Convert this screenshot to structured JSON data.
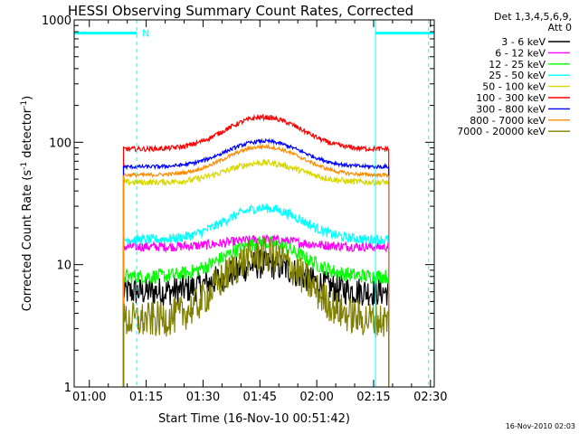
{
  "chart_data": {
    "type": "line",
    "title": "HESSI Observing Summary Count Rates, Corrected",
    "xlabel": "Start Time (16-Nov-10 00:51:42)",
    "ylabel": "Corrected Count Rate (s",
    "ylabel_sup1": "-1",
    "ylabel_mid": " detector",
    "ylabel_sup2": "-1",
    "ylabel_end": ")",
    "yscale": "log",
    "ylim": [
      1,
      1000
    ],
    "xlim_minutes": [
      56,
      151
    ],
    "x_ticks": [
      {
        "min": 60,
        "label": "01:00"
      },
      {
        "min": 75,
        "label": "01:15"
      },
      {
        "min": 90,
        "label": "01:30"
      },
      {
        "min": 105,
        "label": "01:45"
      },
      {
        "min": 120,
        "label": "02:00"
      },
      {
        "min": 135,
        "label": "02:15"
      },
      {
        "min": 150,
        "label": "02:30"
      }
    ],
    "y_ticks": [
      {
        "v": 1,
        "label": "1"
      },
      {
        "v": 10,
        "label": "10"
      },
      {
        "v": 100,
        "label": "100"
      },
      {
        "v": 1000,
        "label": "1000"
      }
    ],
    "legend_header": [
      "Det 1,3,4,5,6,9,",
      "Att 0"
    ],
    "data_start_min": 69,
    "data_end_min": 139,
    "peak_min": 106,
    "series": [
      {
        "name": "3 - 6 keV",
        "color": "#000000",
        "base": 6,
        "peak": 10,
        "noise": 0.12
      },
      {
        "name": "6 - 12 keV",
        "color": "#ff00ff",
        "base": 14,
        "peak": 16,
        "noise": 0.04
      },
      {
        "name": "12 - 25 keV",
        "color": "#00ff00",
        "base": 8,
        "peak": 15,
        "noise": 0.06
      },
      {
        "name": "25 - 50 keV",
        "color": "#00ffff",
        "base": 16,
        "peak": 29,
        "noise": 0.04
      },
      {
        "name": "50 - 100 keV",
        "color": "#d8d800",
        "base": 47,
        "peak": 68,
        "noise": 0.025
      },
      {
        "name": "100 - 300 keV",
        "color": "#ff0000",
        "base": 88,
        "peak": 160,
        "noise": 0.02
      },
      {
        "name": "300 - 800 keV",
        "color": "#0000ff",
        "base": 63,
        "peak": 102,
        "noise": 0.015
      },
      {
        "name": "800 - 7000 keV",
        "color": "#ff8c00",
        "base": 54,
        "peak": 92,
        "noise": 0.015
      },
      {
        "name": "7000 - 20000 keV",
        "color": "#808000",
        "base": 3.5,
        "peak": 12,
        "noise": 0.15
      }
    ],
    "eclipse_marker": {
      "label": "N",
      "color": "#00ffff",
      "level": 780,
      "segments": [
        [
          56,
          72.5
        ],
        [
          135.5,
          151
        ]
      ],
      "dashed_min": [
        72.5,
        149.5
      ],
      "solid_min": [
        135.5
      ]
    },
    "footer": "16-Nov-2010 02:03"
  }
}
